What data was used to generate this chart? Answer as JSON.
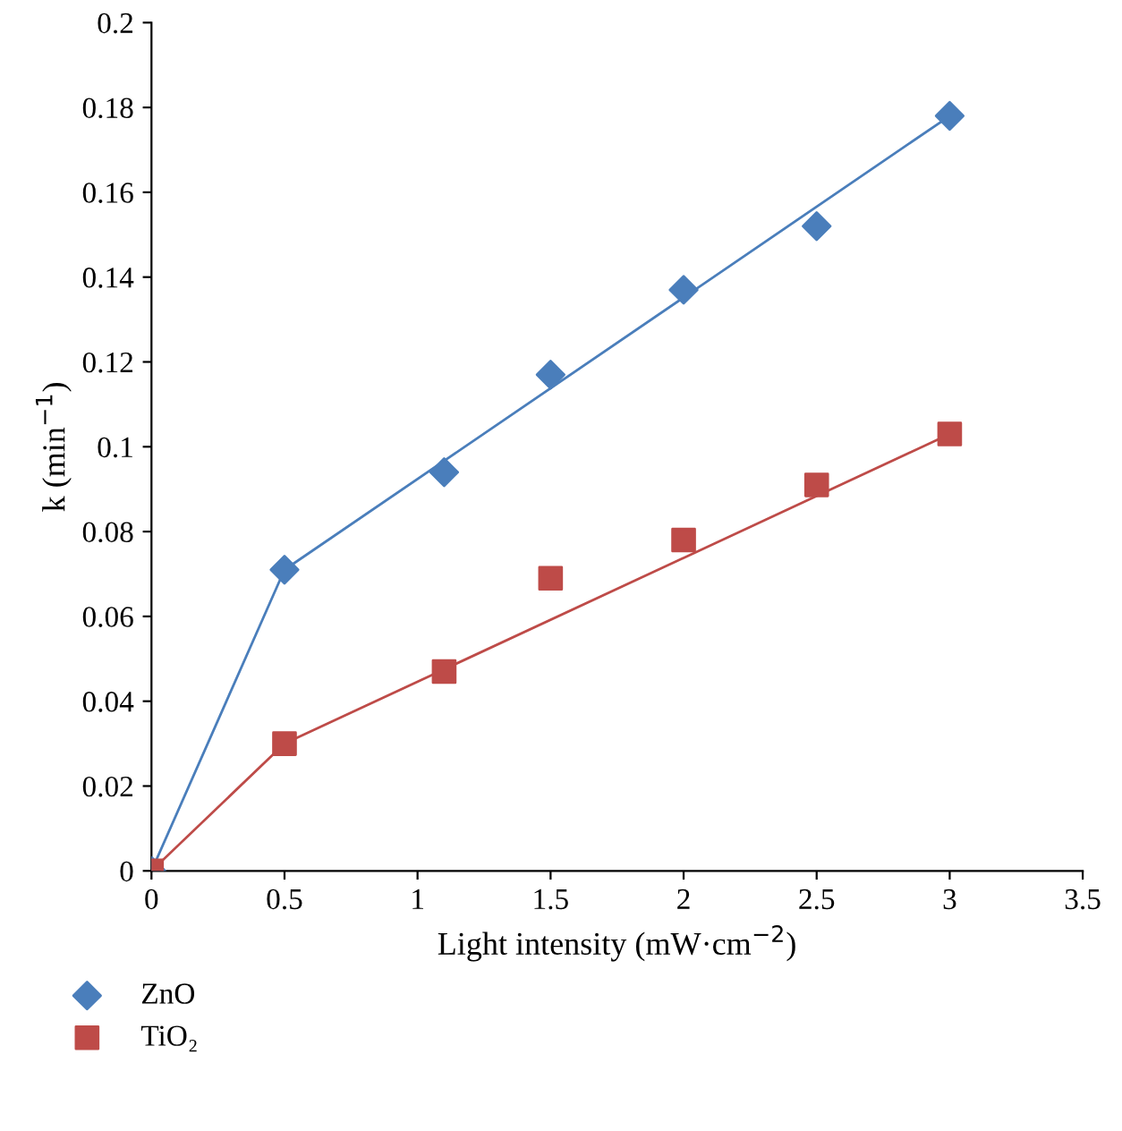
{
  "chart_data": {
    "type": "scatter",
    "xlabel": "Light intensity (mW·cm$^{−2}$)",
    "ylabel": "k (min$^{−1}$)",
    "xlim": [
      0,
      3.5
    ],
    "xticks": [
      0,
      0.5,
      1,
      1.5,
      2,
      2.5,
      3,
      3.5
    ],
    "ylim": [
      0,
      0.2
    ],
    "yticks": [
      0,
      0.02,
      0.04,
      0.06,
      0.08,
      0.1,
      0.12,
      0.14,
      0.16,
      0.18,
      0.2
    ],
    "grid": false,
    "legend": "bottom left",
    "series": [
      {
        "name": "ZnO",
        "marker": "diamond",
        "color": "#4a7ebb",
        "x": [
          0,
          0.5,
          1.1,
          1.5,
          2,
          2.5,
          3
        ],
        "values": [
          0,
          0.071,
          0.094,
          0.117,
          0.137,
          0.152,
          0.178
        ]
      },
      {
        "name": "TiO₂",
        "marker": "square",
        "color": "#be4b48",
        "x": [
          0,
          0.5,
          1.1,
          1.5,
          2,
          2.5,
          3
        ],
        "values": [
          0,
          0.03,
          0.047,
          0.069,
          0.078,
          0.091,
          0.103
        ]
      },
      {
        "type": "line",
        "marker": "none",
        "color": "#4a7ebb",
        "x": [
          0,
          0.5,
          3
        ],
        "values": [
          0,
          0.071,
          0.178
        ]
      },
      {
        "type": "line",
        "marker": "none",
        "color": "#be4b48",
        "x": [
          0,
          0.5,
          3
        ],
        "values": [
          0,
          0.03,
          0.103
        ]
      }
    ]
  }
}
